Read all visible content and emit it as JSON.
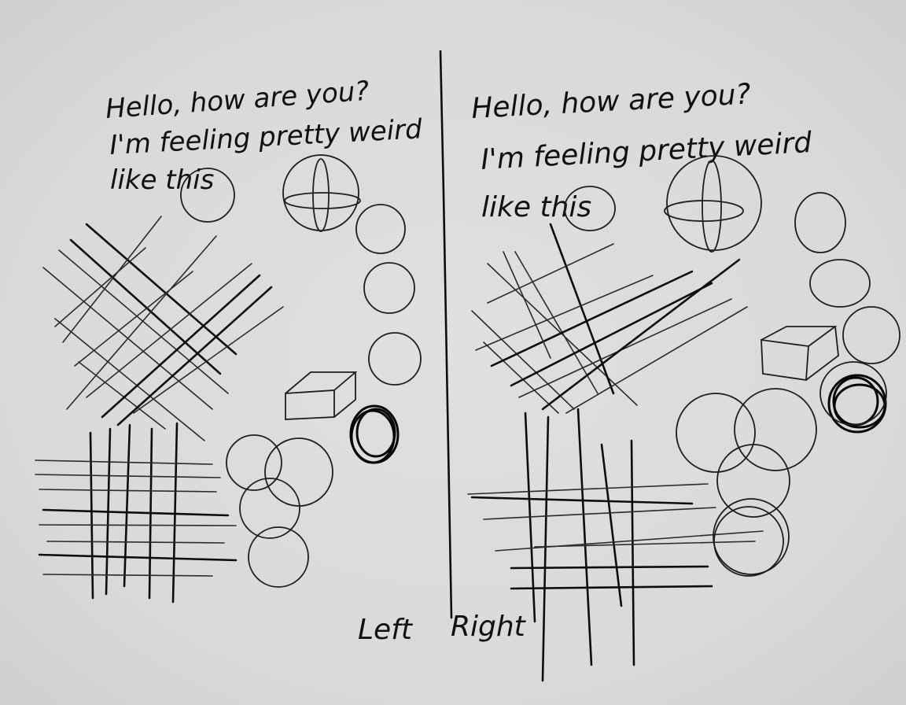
{
  "left_text": {
    "line1": "Hello, how are you?",
    "line2": "I'm feeling pretty weird",
    "line3": "like this"
  },
  "right_text": {
    "line1": "Hello, how are you?",
    "line2": "I'm feeling pretty weird",
    "line3": "like this"
  },
  "labels": {
    "left": "Left",
    "right": "Right"
  },
  "colors": {
    "paper": "#dcdcdc",
    "ink": "#111111"
  }
}
